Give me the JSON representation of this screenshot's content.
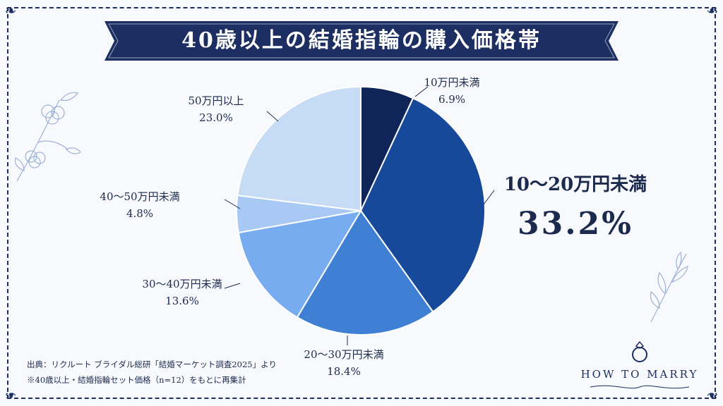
{
  "title": "40歳以上の結婚指輪の購入価格帯",
  "source": {
    "line1": "出典：リクルート ブライダル総研「結婚マーケット調査2025」より",
    "line2": "※40歳以上・結婚指輪セット価格（n=12）をもとに再集計"
  },
  "logo": {
    "text": "HOW TO MARRY",
    "icon": "ring-icon"
  },
  "colors": {
    "navy": "#1d2f62",
    "background": "#f7f9fc",
    "slices": [
      "#0f2458",
      "#17499a",
      "#3f7fd4",
      "#78acf0",
      "#a7c9f3",
      "#c6dbf4"
    ]
  },
  "chart_data": {
    "type": "pie",
    "title": "40歳以上の結婚指輪の購入価格帯",
    "start_angle_deg": 0,
    "direction": "clockwise",
    "slices": [
      {
        "label": "10万円未満",
        "value": 6.9,
        "value_label": "6.9%"
      },
      {
        "label": "10〜20万円未満",
        "value": 33.2,
        "value_label": "33.2%",
        "highlight": true
      },
      {
        "label": "20〜30万円未満",
        "value": 18.4,
        "value_label": "18.4%"
      },
      {
        "label": "30〜40万円未満",
        "value": 13.6,
        "value_label": "13.6%"
      },
      {
        "label": "40〜50万円未満",
        "value": 4.8,
        "value_label": "4.8%"
      },
      {
        "label": "50万円以上",
        "value": 23.0,
        "value_label": "23.0%"
      }
    ]
  }
}
